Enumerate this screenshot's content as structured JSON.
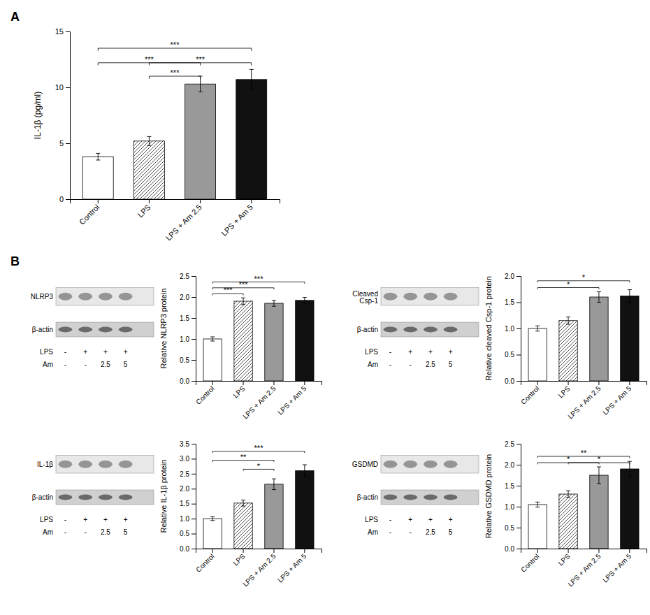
{
  "chart_data": [
    {
      "type": "bar",
      "title": "A",
      "categories": [
        "Control",
        "LPS",
        "LPS + Am 2.5",
        "LPS + Am 5"
      ],
      "values": [
        3.8,
        5.2,
        10.3,
        10.7
      ],
      "errors": [
        0.3,
        0.4,
        0.7,
        0.9
      ],
      "colors": [
        "#ffffff",
        "#ffffff",
        "#999999",
        "#111111"
      ],
      "ylabel": "IL-1β (pg/ml)",
      "ylim": [
        0,
        15
      ],
      "yticks": [
        0,
        5,
        10,
        15
      ],
      "sig_bars": [
        {
          "from": "Control",
          "to": "LPS + Am 2.5",
          "y": 12.2,
          "label": "***"
        },
        {
          "from": "Control",
          "to": "LPS + Am 5",
          "y": 13.5,
          "label": "***"
        },
        {
          "from": "LPS",
          "to": "LPS + Am 2.5",
          "y": 11.0,
          "label": "***"
        },
        {
          "from": "LPS",
          "to": "LPS + Am 5",
          "y": 12.2,
          "label": "***"
        }
      ]
    },
    {
      "type": "bar",
      "title": "B",
      "categories": [
        "Control",
        "LPS",
        "LPS + Am 2.5",
        "LPS + Am 5"
      ],
      "values": [
        1.0,
        1.9,
        1.85,
        1.92
      ],
      "errors": [
        0.05,
        0.08,
        0.07,
        0.07
      ],
      "colors": [
        "#ffffff",
        "#ffffff",
        "#999999",
        "#111111"
      ],
      "ylabel": "Relative NLRP3 protein",
      "ylim": [
        0,
        2.5
      ],
      "yticks": [
        {
          "value": 0,
          "label": "0.0"
        },
        0.5,
        {
          "value": 1.0,
          "label": "1.0"
        },
        1.5,
        {
          "value": 2.0,
          "label": "2.0"
        },
        2.5
      ],
      "sig_bars": [
        {
          "from": "Control",
          "to": "LPS",
          "y": 2.08,
          "label": "***"
        },
        {
          "from": "Control",
          "to": "LPS + Am 2.5",
          "y": 2.22,
          "label": "***"
        },
        {
          "from": "Control",
          "to": "LPS + Am 5",
          "y": 2.36,
          "label": "***"
        }
      ],
      "annotations": [
        [
          "NLRP3"
        ],
        [
          "β-actin"
        ],
        [
          "LPS",
          "-",
          "+",
          "+",
          "+"
        ],
        [
          "Am",
          "-",
          "-",
          "2.5",
          "5"
        ]
      ]
    },
    {
      "type": "bar",
      "categories": [
        "Control",
        "LPS",
        "LPS + Am 2.5",
        "LPS + Am 5"
      ],
      "values": [
        1.0,
        1.52,
        2.15,
        2.6
      ],
      "errors": [
        0.06,
        0.1,
        0.18,
        0.2
      ],
      "colors": [
        "#ffffff",
        "#ffffff",
        "#999999",
        "#111111"
      ],
      "ylabel": "Relative IL-1β protein",
      "ylim": [
        0,
        3.5
      ],
      "yticks": [
        {
          "value": 0,
          "label": "0.0"
        },
        0.5,
        {
          "value": 1.0,
          "label": "1.0"
        },
        1.5,
        {
          "value": 2.0,
          "label": "2.0"
        },
        2.5,
        {
          "value": 3.0,
          "label": "3.0"
        },
        3.5
      ],
      "sig_bars": [
        {
          "from": "LPS",
          "to": "LPS + Am 2.5",
          "y": 2.65,
          "label": "*"
        },
        {
          "from": "Control",
          "to": "LPS + Am 2.5",
          "y": 2.95,
          "label": "**"
        },
        {
          "from": "Control",
          "to": "LPS + Am 5",
          "y": 3.25,
          "label": "***"
        }
      ],
      "annotations": [
        [
          "IL-1β"
        ],
        [
          "β-actin"
        ],
        [
          "LPS",
          "-",
          "+",
          "+",
          "+"
        ],
        [
          "Am",
          "-",
          "-",
          "2.5",
          "5"
        ]
      ]
    },
    {
      "type": "bar",
      "categories": [
        "Control",
        "LPS",
        "LPS + Am 2.5",
        "LPS + Am 5"
      ],
      "values": [
        1.0,
        1.15,
        1.6,
        1.62
      ],
      "errors": [
        0.05,
        0.07,
        0.1,
        0.12
      ],
      "colors": [
        "#ffffff",
        "#ffffff",
        "#999999",
        "#111111"
      ],
      "ylabel": "Relative cleaved Csp-1 protein",
      "ylim": [
        0,
        2.0
      ],
      "yticks": [
        {
          "value": 0,
          "label": "0.0"
        },
        0.5,
        {
          "value": 1.0,
          "label": "1.0"
        },
        1.5,
        {
          "value": 2.0,
          "label": "2.0"
        }
      ],
      "sig_bars": [
        {
          "from": "Control",
          "to": "LPS + Am 2.5",
          "y": 1.78,
          "label": "*"
        },
        {
          "from": "Control",
          "to": "LPS + Am 5",
          "y": 1.91,
          "label": "*"
        }
      ],
      "annotations": [
        [
          "Cleaved",
          "Csp-1"
        ],
        [
          "β-actin"
        ],
        [
          "LPS",
          "-",
          "+",
          "+",
          "+"
        ],
        [
          "Am",
          "-",
          "-",
          "2.5",
          "5"
        ]
      ]
    },
    {
      "type": "bar",
      "categories": [
        "Control",
        "LPS",
        "LPS + Am 2.5",
        "LPS + Am 5"
      ],
      "values": [
        1.05,
        1.3,
        1.75,
        1.9
      ],
      "errors": [
        0.06,
        0.08,
        0.2,
        0.18
      ],
      "colors": [
        "#ffffff",
        "#ffffff",
        "#999999",
        "#111111"
      ],
      "ylabel": "Relative GSDMD protein",
      "ylim": [
        0,
        2.5
      ],
      "yticks": [
        {
          "value": 0,
          "label": "0.0"
        },
        0.5,
        {
          "value": 1.0,
          "label": "1.0"
        },
        1.5,
        {
          "value": 2.0,
          "label": "2.0"
        },
        2.5
      ],
      "sig_bars": [
        {
          "from": "LPS",
          "to": "LPS + Am 5",
          "y": 2.05,
          "label": "*"
        },
        {
          "from": "Control",
          "to": "LPS + Am 2.5",
          "y": 2.05,
          "label": "*"
        },
        {
          "from": "Control",
          "to": "LPS + Am 5",
          "y": 2.2,
          "label": "**"
        }
      ],
      "annotations": [
        [
          "GSDMD"
        ],
        [
          "β-actin"
        ],
        [
          "LPS",
          "-",
          "+",
          "+",
          "+"
        ],
        [
          "Am",
          "-",
          "-",
          "2.5",
          "5"
        ]
      ]
    }
  ]
}
